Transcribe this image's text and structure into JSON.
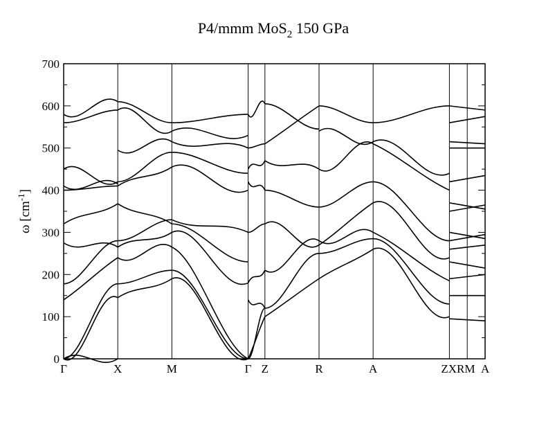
{
  "chart_data": {
    "type": "line",
    "title": "P4/mmm MoS",
    "title_subscript": "2",
    "title_suffix": " 150 GPa",
    "ylabel": "ω [cm",
    "ylabel_superscript": "-1",
    "ylabel_suffix": "]",
    "ylim": [
      0,
      700
    ],
    "yticks": [
      0,
      100,
      200,
      300,
      400,
      500,
      600,
      700
    ],
    "grid": false,
    "legend": "none",
    "line_color": "#000000",
    "high_symmetry_points": [
      {
        "label": "Γ",
        "k": 0
      },
      {
        "label": "X",
        "k": 1
      },
      {
        "label": "M",
        "k": 2
      },
      {
        "label": "Γ",
        "k": 3.41
      },
      {
        "label": "Z",
        "k": 3.72
      },
      {
        "label": "R",
        "k": 4.72
      },
      {
        "label": "A",
        "k": 5.72
      },
      {
        "label": "ZXRM",
        "k": 7.13
      },
      {
        "label": "A",
        "k": 7.79
      }
    ],
    "extra_vertical_lines_k": [
      3.41,
      3.72,
      7.13,
      7.46
    ],
    "segment_endpoint_frequencies": {
      "Γ-X": [
        [
          0,
          0
        ],
        [
          0,
          178
        ],
        [
          0,
          145
        ],
        [
          140,
          240
        ],
        [
          178,
          280
        ],
        [
          275,
          265
        ],
        [
          320,
          368
        ],
        [
          400,
          410
        ],
        [
          410,
          415
        ],
        [
          450,
          420
        ],
        [
          560,
          590
        ],
        [
          580,
          610
        ]
      ],
      "X-M": [
        [
          145,
          190
        ],
        [
          178,
          210
        ],
        [
          240,
          265
        ],
        [
          265,
          300
        ],
        [
          280,
          330
        ],
        [
          368,
          320
        ],
        [
          410,
          455
        ],
        [
          420,
          490
        ],
        [
          495,
          515
        ],
        [
          590,
          540
        ],
        [
          610,
          560
        ]
      ],
      "M-Γ": [
        [
          190,
          0
        ],
        [
          210,
          0
        ],
        [
          265,
          0
        ],
        [
          300,
          180
        ],
        [
          320,
          230
        ],
        [
          330,
          300
        ],
        [
          455,
          400
        ],
        [
          490,
          440
        ],
        [
          515,
          500
        ],
        [
          540,
          530
        ],
        [
          560,
          580
        ]
      ],
      "Γ-Z": [
        [
          0,
          100
        ],
        [
          0,
          120
        ],
        [
          140,
          120
        ],
        [
          180,
          210
        ],
        [
          300,
          320
        ],
        [
          420,
          400
        ],
        [
          450,
          470
        ],
        [
          500,
          510
        ],
        [
          580,
          605
        ]
      ],
      "Z-R": [
        [
          100,
          190
        ],
        [
          120,
          250
        ],
        [
          210,
          280
        ],
        [
          320,
          270
        ],
        [
          400,
          360
        ],
        [
          470,
          450
        ],
        [
          510,
          600
        ],
        [
          605,
          545
        ]
      ],
      "R-A": [
        [
          190,
          260
        ],
        [
          250,
          285
        ],
        [
          280,
          300
        ],
        [
          270,
          370
        ],
        [
          360,
          420
        ],
        [
          450,
          510
        ],
        [
          540,
          515
        ],
        [
          600,
          560
        ]
      ],
      "A-ZXRM": [
        [
          260,
          100
        ],
        [
          285,
          130
        ],
        [
          300,
          185
        ],
        [
          370,
          240
        ],
        [
          420,
          280
        ],
        [
          510,
          400
        ],
        [
          515,
          440
        ],
        [
          560,
          600
        ]
      ]
    }
  }
}
